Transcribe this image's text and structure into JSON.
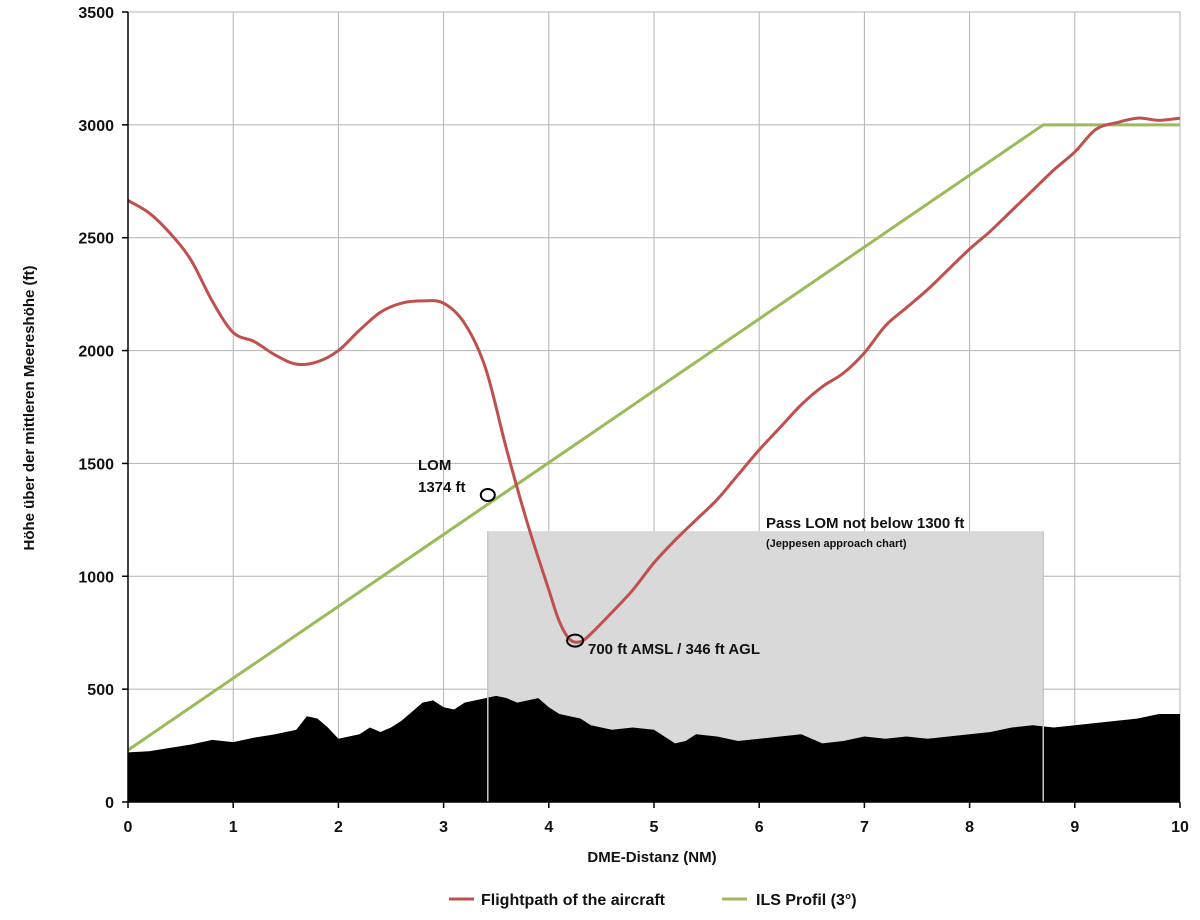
{
  "chart_data": {
    "type": "line",
    "xlabel": "DME-Distanz (NM)",
    "ylabel": "Höhe über der mittleren Meereshöhe (ft)",
    "xlim": [
      0,
      10
    ],
    "ylim": [
      0,
      3500
    ],
    "x_ticks": [
      "0",
      "1",
      "2",
      "3",
      "4",
      "5",
      "6",
      "7",
      "8",
      "9",
      "10"
    ],
    "y_ticks": [
      "0",
      "500",
      "1000",
      "1500",
      "2000",
      "2500",
      "3000",
      "3500"
    ],
    "grid": true,
    "legend_position": "bottom",
    "colors": {
      "flightpath": "#c0504d",
      "ils": "#9bbb59",
      "terrain": "#000000",
      "zone": "#d9d9d9"
    },
    "series": [
      {
        "name": "Flightpath of the aircraft",
        "color": "#c0504d",
        "x": [
          0,
          0.2,
          0.4,
          0.6,
          0.8,
          1.0,
          1.2,
          1.4,
          1.6,
          1.8,
          2.0,
          2.2,
          2.4,
          2.6,
          2.8,
          3.0,
          3.2,
          3.4,
          3.6,
          3.8,
          4.0,
          4.1,
          4.2,
          4.3,
          4.4,
          4.6,
          4.8,
          5.0,
          5.2,
          5.4,
          5.6,
          5.8,
          6.0,
          6.2,
          6.4,
          6.6,
          6.8,
          7.0,
          7.2,
          7.4,
          7.6,
          7.8,
          8.0,
          8.2,
          8.4,
          8.6,
          8.8,
          9.0,
          9.2,
          9.4,
          9.6,
          9.8,
          10.0
        ],
        "y": [
          2665,
          2610,
          2520,
          2400,
          2220,
          2080,
          2040,
          1980,
          1940,
          1950,
          2000,
          2090,
          2170,
          2210,
          2220,
          2210,
          2120,
          1920,
          1560,
          1230,
          940,
          800,
          720,
          710,
          745,
          840,
          940,
          1060,
          1160,
          1250,
          1340,
          1450,
          1560,
          1660,
          1760,
          1840,
          1900,
          1990,
          2110,
          2190,
          2270,
          2360,
          2450,
          2530,
          2620,
          2710,
          2800,
          2880,
          2980,
          3010,
          3030,
          3020,
          3030
        ]
      },
      {
        "name": "ILS Profil (3°)",
        "color": "#9bbb59",
        "x": [
          0,
          8.7,
          10
        ],
        "y": [
          230,
          3000,
          3000
        ]
      }
    ],
    "terrain": {
      "x": [
        0,
        0.2,
        0.4,
        0.6,
        0.8,
        1.0,
        1.2,
        1.4,
        1.6,
        1.7,
        1.8,
        1.9,
        2.0,
        2.1,
        2.2,
        2.3,
        2.4,
        2.5,
        2.6,
        2.7,
        2.8,
        2.9,
        3.0,
        3.1,
        3.2,
        3.3,
        3.4,
        3.5,
        3.6,
        3.7,
        3.8,
        3.9,
        4.0,
        4.1,
        4.2,
        4.3,
        4.4,
        4.6,
        4.8,
        5.0,
        5.2,
        5.3,
        5.4,
        5.6,
        5.8,
        6.0,
        6.2,
        6.4,
        6.6,
        6.8,
        7.0,
        7.2,
        7.4,
        7.6,
        7.8,
        8.0,
        8.2,
        8.4,
        8.6,
        8.8,
        9.0,
        9.2,
        9.4,
        9.6,
        9.8,
        10.0
      ],
      "y": [
        220,
        225,
        240,
        255,
        275,
        265,
        285,
        300,
        320,
        380,
        370,
        330,
        280,
        290,
        300,
        330,
        310,
        330,
        360,
        400,
        440,
        450,
        420,
        410,
        440,
        450,
        460,
        470,
        460,
        440,
        450,
        460,
        420,
        390,
        380,
        370,
        340,
        320,
        330,
        320,
        260,
        270,
        300,
        290,
        270,
        280,
        290,
        300,
        260,
        270,
        290,
        280,
        290,
        280,
        290,
        300,
        310,
        330,
        340,
        330,
        340,
        350,
        360,
        370,
        390,
        390
      ]
    },
    "zone": {
      "x_start": 3.42,
      "x_end": 8.7,
      "y_top": 1200
    },
    "annotations": {
      "lom_label": "LOM",
      "lom_value": "1374 ft",
      "lom_point": {
        "x": 3.42,
        "y": 1360
      },
      "low_point_label": "700 ft AMSL / 346 ft AGL",
      "low_point": {
        "x": 4.25,
        "y": 715
      },
      "zone_title": "Pass LOM not below 1300 ft",
      "zone_subtitle": "(Jeppesen approach chart)"
    }
  }
}
